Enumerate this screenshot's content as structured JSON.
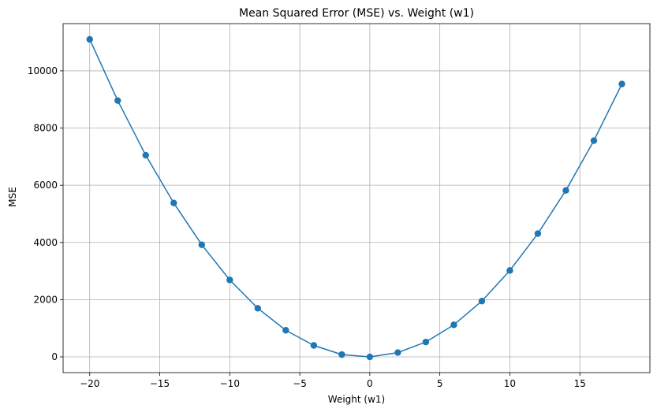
{
  "chart_data": {
    "type": "line",
    "title": "Mean Squared Error (MSE) vs. Weight (w1)",
    "xlabel": "Weight (w1)",
    "ylabel": "MSE",
    "xlim": [
      -21.9,
      20.0
    ],
    "ylim": [
      -550,
      11650
    ],
    "x_ticks": [
      -20,
      -15,
      -10,
      -5,
      0,
      5,
      10,
      15
    ],
    "x_tick_labels": [
      "−20",
      "−15",
      "−10",
      "−5",
      "0",
      "5",
      "10",
      "15"
    ],
    "y_ticks": [
      0,
      2000,
      4000,
      6000,
      8000,
      10000
    ],
    "y_tick_labels": [
      "0",
      "2000",
      "4000",
      "6000",
      "8000",
      "10000"
    ],
    "grid": true,
    "legend": false,
    "series": [
      {
        "color": "#1f77b4",
        "marker": "circle",
        "x": [
          -20,
          -18,
          -16,
          -14,
          -12,
          -10,
          -8,
          -6,
          -4,
          -2,
          0,
          2,
          4,
          6,
          8,
          10,
          12,
          14,
          16,
          18
        ],
        "y": [
          11100,
          8960,
          7050,
          5380,
          3920,
          2690,
          1700,
          930,
          400,
          80,
          0,
          150,
          520,
          1120,
          1950,
          3020,
          4310,
          5820,
          7560,
          9540
        ]
      }
    ]
  }
}
